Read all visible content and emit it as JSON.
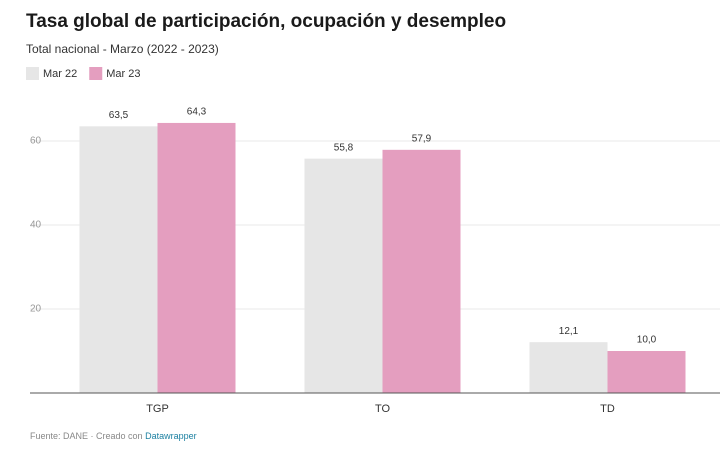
{
  "chart_data": {
    "type": "grouped_bar",
    "title": "Tasa global de participación, ocupación y desempleo",
    "subtitle": "Total nacional - Marzo (2022 - 2023)",
    "categories": [
      "TGP",
      "TO",
      "TD"
    ],
    "series": [
      {
        "name": "Mar 22",
        "color": "#e6e6e6",
        "values": [
          63.5,
          55.8,
          12.1
        ],
        "value_labels": [
          "63,5",
          "55,8",
          "12,1"
        ]
      },
      {
        "name": "Mar 23",
        "color": "#e49ebf",
        "values": [
          64.3,
          57.9,
          10.0
        ],
        "value_labels": [
          "64,3",
          "57,9",
          "10,0"
        ]
      }
    ],
    "ylim": [
      0,
      70
    ],
    "yticks": [
      20,
      40,
      60
    ],
    "grid": true,
    "legend": "top-left",
    "source": "Fuente: DANE · Creado con",
    "source_link": "Datawrapper"
  }
}
